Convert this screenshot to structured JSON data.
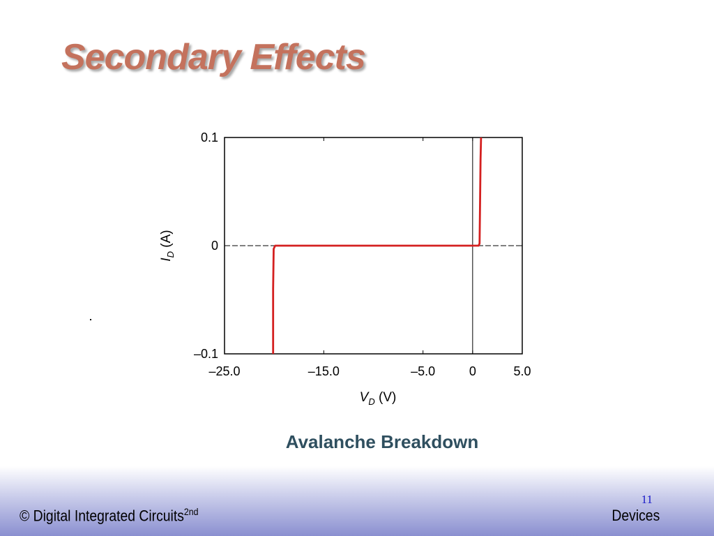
{
  "slide": {
    "title": "Secondary Effects",
    "caption": "Avalanche Breakdown",
    "footer_left": "© Digital Integrated Circuits",
    "footer_left_sup": "2nd",
    "footer_right": "Devices",
    "page_number": "11"
  },
  "chart_data": {
    "type": "line",
    "title": "",
    "xlabel_main": "V",
    "xlabel_sub": "D",
    "xlabel_unit": " (V)",
    "ylabel_main": "I",
    "ylabel_sub": "D",
    "ylabel_unit": " (A)",
    "xlim": [
      -25.0,
      5.0
    ],
    "ylim": [
      -0.1,
      0.1
    ],
    "x_ticks": [
      -25.0,
      -15.0,
      -5.0,
      0,
      5.0
    ],
    "x_tick_labels": [
      "–25.0",
      "–15.0",
      "–5.0",
      "0",
      "5.0"
    ],
    "y_ticks": [
      0.1,
      0,
      -0.1
    ],
    "y_tick_labels": [
      "0.1",
      "0",
      "–0.1"
    ],
    "grid": "dashed",
    "series": [
      {
        "color": "#d42020",
        "x": [
          -20.1,
          -20.1,
          -20.05,
          -19.9,
          -5.0,
          0.0,
          0.6,
          0.7,
          0.75,
          0.8,
          0.85
        ],
        "y": [
          -0.1,
          -0.04,
          -0.003,
          0.0,
          0.0,
          0.0,
          0.0,
          0.002,
          0.04,
          0.08,
          0.1
        ]
      }
    ]
  }
}
